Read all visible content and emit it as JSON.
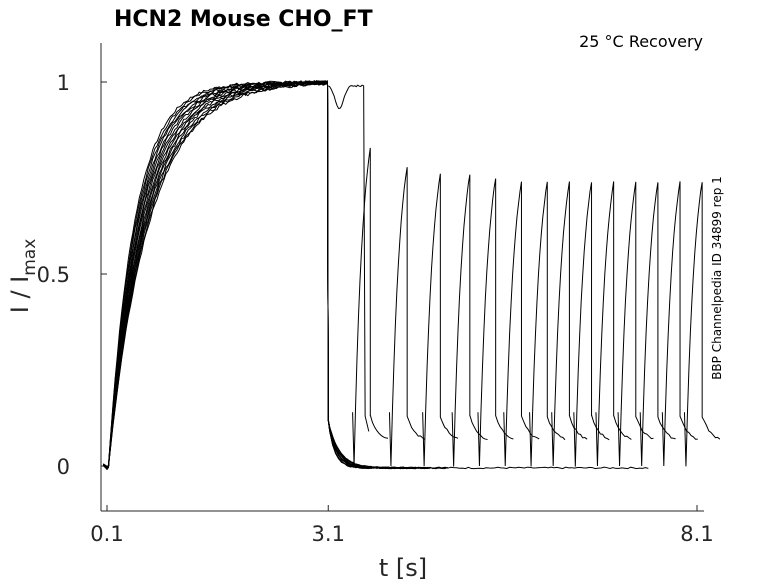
{
  "chart_data": {
    "type": "line",
    "title": "HCN2  Mouse  CHO_FT",
    "subtitle": "25 °C  Recovery",
    "xlabel": "t [s]",
    "ylabel_main": "I / I",
    "ylabel_sub": "max",
    "side_note": "BBP Channelpedia ID 34899 rep 1",
    "xticks": [
      0.1,
      3.1,
      8.1
    ],
    "xtick_labels": [
      "0.1",
      "3.1",
      "8.1"
    ],
    "yticks": [
      0,
      0.5,
      1
    ],
    "ytick_labels": [
      "0",
      "0.5",
      "1"
    ],
    "xlim": [
      0.05,
      8.2
    ],
    "ylim": [
      -0.12,
      1.1
    ],
    "grid": false,
    "activation": {
      "t_start": 0.1,
      "t_end": 3.1,
      "baseline": 0.0,
      "tau_range": [
        0.35,
        0.55
      ],
      "traces": 16
    },
    "recovery": {
      "test_start_times": [
        3.45,
        3.95,
        4.4,
        4.8,
        5.15,
        5.5,
        5.85,
        6.15,
        6.45,
        6.75,
        7.05,
        7.35,
        7.65,
        7.95
      ],
      "recovery_peaks": [
        0.83,
        0.78,
        0.76,
        0.76,
        0.75,
        0.74,
        0.74,
        0.74,
        0.74,
        0.74,
        0.74,
        0.74,
        0.74,
        0.74
      ],
      "first_sweep_end": 3.6,
      "first_sweep_value": 0.99,
      "tail_floor": 0.0,
      "tail_end": 7.45
    }
  }
}
